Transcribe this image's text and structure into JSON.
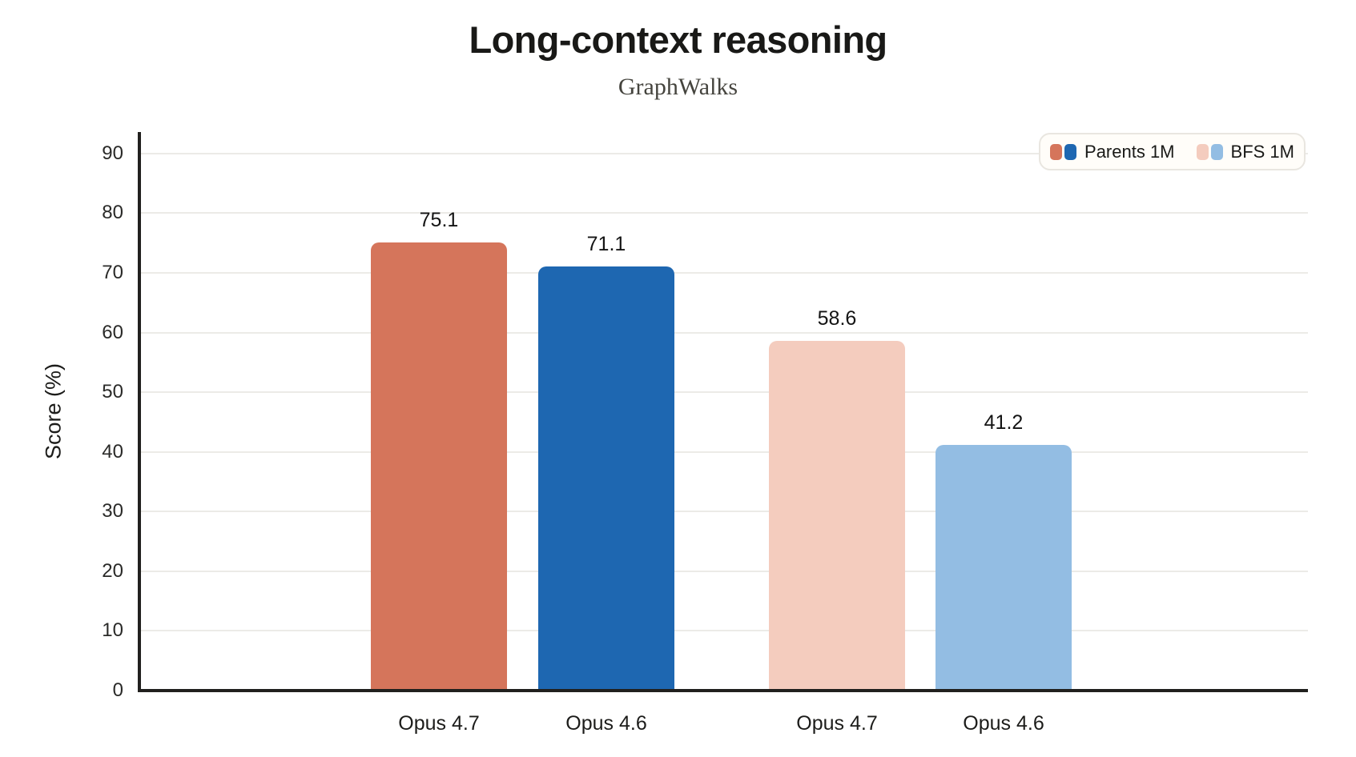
{
  "header": {
    "title": "Long-context reasoning",
    "subtitle": "GraphWalks"
  },
  "chart_data": {
    "type": "bar",
    "title": "Long-context reasoning",
    "subtitle": "GraphWalks",
    "xlabel": "",
    "ylabel": "Score (%)",
    "ylim": [
      0,
      93.6
    ],
    "yticks": [
      0,
      10,
      20,
      30,
      40,
      50,
      60,
      70,
      80,
      90
    ],
    "grid": "horizontal",
    "legend_position": "top-right",
    "categories": [
      "Opus 4.7",
      "Opus 4.6",
      "Opus 4.7",
      "Opus 4.6"
    ],
    "bars": [
      {
        "category": "Opus 4.7",
        "series": "Parents 1M",
        "value": 75.1,
        "color": "#d5755b"
      },
      {
        "category": "Opus 4.6",
        "series": "Parents 1M",
        "value": 71.1,
        "color": "#1e67b1"
      },
      {
        "category": "Opus 4.7",
        "series": "BFS 1M",
        "value": 58.6,
        "color": "#f4ccbe"
      },
      {
        "category": "Opus 4.6",
        "series": "BFS 1M",
        "value": 41.2,
        "color": "#93bde3"
      }
    ],
    "legend": [
      {
        "label": "Parents 1M",
        "colors": [
          "#d5755b",
          "#1e67b1"
        ]
      },
      {
        "label": "BFS 1M",
        "colors": [
          "#f4ccbe",
          "#93bde3"
        ]
      }
    ],
    "colors": {
      "axis": "#21201e",
      "gridline": "#ecebe7",
      "background": "#ffffff"
    }
  }
}
